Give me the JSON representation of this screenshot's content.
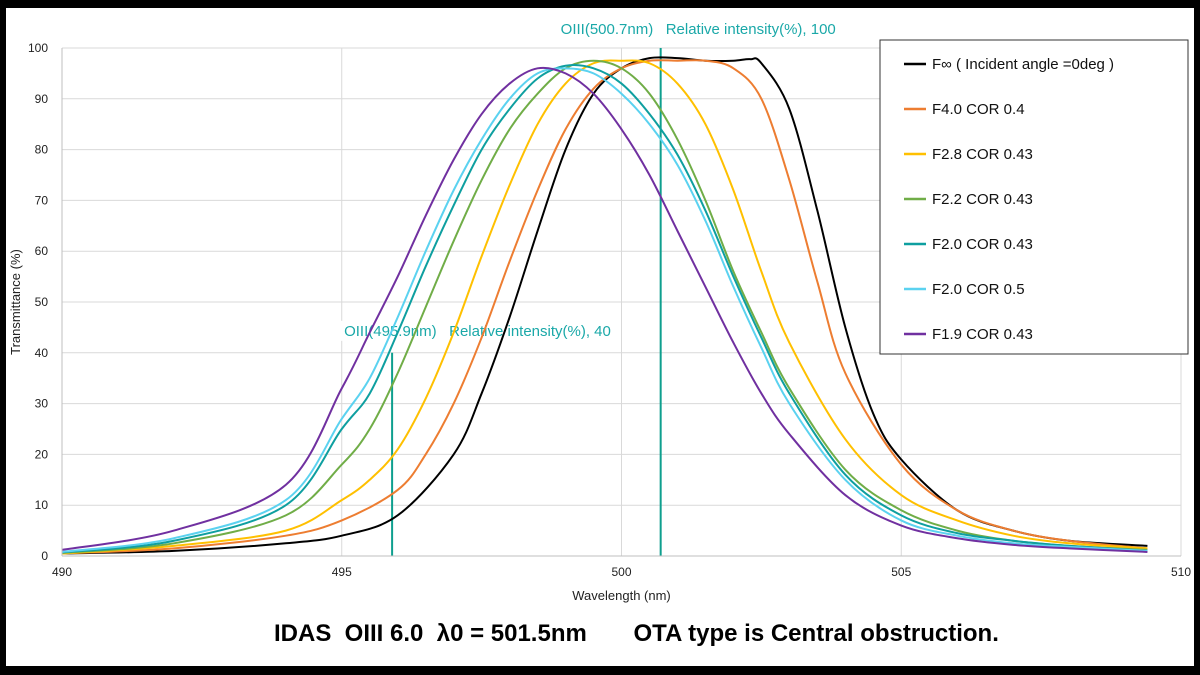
{
  "chart_data": {
    "type": "line",
    "xlabel": "Wavelength (nm)",
    "ylabel": "Transmittance (%)",
    "xlim": [
      490,
      510
    ],
    "ylim": [
      0,
      100
    ],
    "xticks": [
      490,
      495,
      500,
      505,
      510
    ],
    "yticks": [
      0,
      10,
      20,
      30,
      40,
      50,
      60,
      70,
      80,
      90,
      100
    ],
    "grid": true,
    "legend_position": "top-right",
    "series": [
      {
        "name": "F∞ ( Incident angle =0deg )",
        "color": "#000000",
        "x": [
          490,
          492,
          494,
          495,
          496,
          497,
          497.5,
          498,
          498.5,
          499,
          499.5,
          500,
          500.5,
          501,
          501.5,
          502,
          502.3,
          502.5,
          503,
          503.5,
          504,
          504.5,
          505,
          506,
          507,
          508,
          509.4
        ],
        "y": [
          0.5,
          1,
          2.5,
          4,
          8,
          20,
          32,
          47,
          64,
          80,
          91,
          96,
          98,
          98,
          97.5,
          97.5,
          97.8,
          97,
          88,
          68,
          45,
          28,
          19,
          9,
          5,
          3,
          2
        ]
      },
      {
        "name": "F4.0 COR 0.4",
        "color": "#ed7d31",
        "x": [
          490,
          492,
          494,
          495,
          496,
          496.5,
          497,
          497.5,
          498,
          498.5,
          499,
          499.5,
          500,
          500.5,
          501,
          501.5,
          502,
          502.5,
          503,
          503.5,
          504,
          505,
          506,
          507,
          508,
          509.4
        ],
        "y": [
          0.5,
          1.5,
          4,
          7,
          13,
          20,
          30,
          43,
          58,
          72,
          84,
          92,
          96,
          97.5,
          97.5,
          97.5,
          96,
          90,
          74,
          54,
          36,
          18,
          9,
          5,
          3,
          1.5
        ]
      },
      {
        "name": "F2.8 COR 0.43",
        "color": "#ffc000",
        "x": [
          490,
          492,
          494,
          495,
          495.5,
          496,
          496.5,
          497,
          497.5,
          498,
          498.5,
          499,
          499.5,
          500,
          500.5,
          501,
          501.5,
          502,
          502.5,
          503,
          504,
          505,
          506,
          507,
          508,
          509.4
        ],
        "y": [
          0.5,
          2,
          5,
          11,
          15,
          21,
          31,
          44,
          59,
          73,
          85,
          93,
          97,
          97.5,
          97,
          93,
          85,
          72,
          56,
          42,
          23,
          12,
          7,
          4,
          2.5,
          1.5
        ]
      },
      {
        "name": "F2.2 COR 0.43",
        "color": "#70ad47",
        "x": [
          490,
          492,
          494,
          495,
          495.5,
          496,
          496.5,
          497,
          497.5,
          498,
          498.5,
          499,
          499.5,
          500,
          500.5,
          501,
          501.5,
          502,
          502.5,
          503,
          504,
          505,
          506,
          507,
          508,
          509.4
        ],
        "y": [
          0.6,
          2.5,
          8,
          18,
          25,
          36,
          49,
          62,
          74,
          84,
          91,
          96,
          97.5,
          96,
          91,
          82,
          70,
          56,
          44,
          33,
          17,
          9,
          5,
          3,
          2,
          1.2
        ]
      },
      {
        "name": "F2.0 COR 0.43",
        "color": "#0e9fa0",
        "x": [
          490,
          492,
          494,
          495,
          495.5,
          496,
          496.5,
          497,
          497.5,
          498,
          498.5,
          499,
          499.5,
          500,
          500.5,
          501,
          501.5,
          502,
          502.5,
          503,
          504,
          505,
          506,
          507,
          508,
          509.4
        ],
        "y": [
          0.7,
          3,
          10,
          25,
          32,
          44,
          57,
          69,
          80,
          88,
          94,
          96.5,
          96,
          93,
          87,
          79,
          68,
          55,
          43,
          32,
          16,
          8,
          4.5,
          3,
          2,
          1
        ]
      },
      {
        "name": "F2.0 COR 0.5",
        "color": "#5bd2f0",
        "x": [
          490,
          492,
          494,
          495,
          495.5,
          496,
          496.5,
          497,
          497.5,
          498,
          498.5,
          499,
          499.5,
          500,
          500.5,
          501,
          501.5,
          502,
          502.5,
          503,
          504,
          505,
          506,
          507,
          508,
          509.4
        ],
        "y": [
          0.8,
          3.5,
          11,
          27,
          35,
          47,
          60,
          72,
          82,
          90,
          95,
          96,
          95,
          91,
          85,
          77,
          66,
          53,
          41,
          30,
          15,
          7,
          4,
          2.5,
          1.8,
          1
        ]
      },
      {
        "name": "F1.9 COR 0.43",
        "color": "#7030a0",
        "x": [
          490,
          492,
          494,
          495,
          495.5,
          496,
          496.5,
          497,
          497.5,
          498,
          498.5,
          499,
          499.5,
          500,
          500.5,
          501,
          501.5,
          502,
          502.5,
          503,
          504,
          505,
          506,
          507,
          508,
          509.4
        ],
        "y": [
          1.2,
          5,
          14,
          33,
          44,
          55,
          67,
          78,
          87,
          93,
          96,
          95,
          91,
          84,
          75,
          64,
          53,
          42,
          32,
          24,
          12,
          6,
          3.5,
          2.2,
          1.5,
          0.8
        ]
      }
    ],
    "annotations": [
      {
        "label": "OIII(500.7nm)   Relative intensity(%), 100",
        "x": 500.7,
        "height": 100,
        "color": "#0e9f8e"
      },
      {
        "label": "OIII(495.9nm)   Relative intensity(%), 40",
        "x": 495.9,
        "height": 40,
        "color": "#0e9f8e"
      }
    ]
  },
  "caption": "IDAS  OIII 6.0  λ0 = 501.5nm       OTA type is Central obstruction."
}
